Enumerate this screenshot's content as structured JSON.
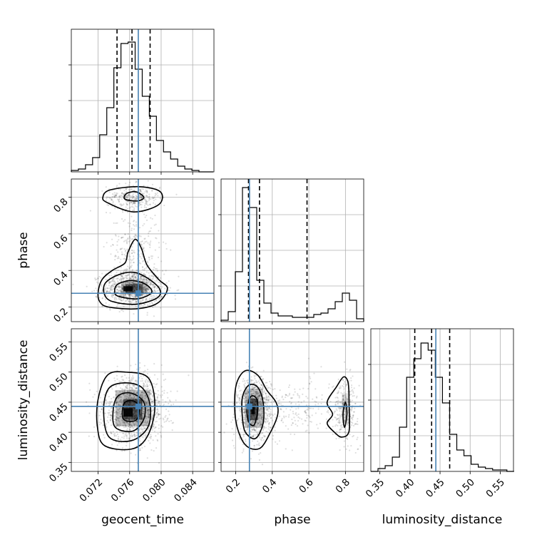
{
  "chart_data": {
    "type": "corner",
    "parameters": [
      "geocent_time",
      "phase",
      "luminosity_distance"
    ],
    "axis_labels": {
      "geocent_time": "geocent_time",
      "phase": "phase",
      "luminosity_distance": "luminosity_distance"
    },
    "ranges": {
      "geocent_time": [
        0.0686,
        0.0867
      ],
      "phase": [
        0.12,
        0.9
      ],
      "luminosity_distance": [
        0.335,
        0.572
      ]
    },
    "ticks": {
      "geocent_time": [
        0.072,
        0.076,
        0.08,
        0.084
      ],
      "phase": [
        0.2,
        0.4,
        0.6,
        0.8
      ],
      "luminosity_distance": [
        0.35,
        0.4,
        0.45,
        0.5,
        0.55
      ]
    },
    "tick_labels": {
      "geocent_time": [
        "0.072",
        "0.076",
        "0.080",
        "0.084"
      ],
      "phase": [
        "0.2",
        "0.4",
        "0.6",
        "0.8"
      ],
      "luminosity_distance": [
        "0.35",
        "0.40",
        "0.45",
        "0.50",
        "0.55"
      ]
    },
    "truths": {
      "geocent_time": 0.0771,
      "phase": 0.275,
      "luminosity_distance": 0.443
    },
    "quantiles": {
      "geocent_time": [
        0.0744,
        0.0763,
        0.0786
      ],
      "phase": [
        0.27,
        0.33,
        0.59
      ],
      "luminosity_distance": [
        0.408,
        0.436,
        0.466
      ]
    },
    "histograms": {
      "geocent_time": {
        "bin_start": 0.0686,
        "bin_width": 0.0009,
        "counts": [
          0.01,
          0.02,
          0.05,
          0.1,
          0.26,
          0.45,
          0.73,
          0.9,
          0.91,
          0.72,
          0.53,
          0.39,
          0.22,
          0.14,
          0.09,
          0.04,
          0.02,
          0.01,
          0.0,
          0.0
        ]
      },
      "phase": {
        "bin_start": 0.12,
        "bin_width": 0.039,
        "counts": [
          0.01,
          0.07,
          0.35,
          0.94,
          0.8,
          0.29,
          0.13,
          0.06,
          0.04,
          0.04,
          0.03,
          0.03,
          0.03,
          0.05,
          0.06,
          0.09,
          0.14,
          0.2,
          0.15,
          0.02
        ]
      },
      "luminosity_distance": {
        "bin_start": 0.335,
        "bin_width": 0.0119,
        "counts": [
          0.0,
          0.02,
          0.04,
          0.1,
          0.31,
          0.66,
          0.79,
          0.9,
          0.85,
          0.66,
          0.48,
          0.26,
          0.15,
          0.11,
          0.05,
          0.03,
          0.02,
          0.01,
          0.01,
          0.0
        ]
      }
    },
    "scatter_clusters": [
      {
        "x": "geocent_time",
        "y": "phase",
        "cx": 0.0765,
        "cy": 0.3,
        "sx": 0.0019,
        "sy": 0.05,
        "n": 1100
      },
      {
        "x": "geocent_time",
        "y": "phase",
        "cx": 0.0765,
        "cy": 0.8,
        "sx": 0.0017,
        "sy": 0.035,
        "n": 350
      },
      {
        "x": "geocent_time",
        "y": "phase",
        "cx": 0.0766,
        "cy": 0.52,
        "sx": 0.0016,
        "sy": 0.1,
        "n": 250
      },
      {
        "x": "geocent_time",
        "y": "luminosity_distance",
        "cx": 0.0766,
        "cy": 0.438,
        "sx": 0.0019,
        "sy": 0.026,
        "n": 1500
      },
      {
        "x": "phase",
        "y": "luminosity_distance",
        "cx": 0.3,
        "cy": 0.438,
        "sx": 0.045,
        "sy": 0.026,
        "n": 1000
      },
      {
        "x": "phase",
        "y": "luminosity_distance",
        "cx": 0.8,
        "cy": 0.44,
        "sx": 0.035,
        "sy": 0.025,
        "n": 300
      },
      {
        "x": "phase",
        "y": "luminosity_distance",
        "cx": 0.52,
        "cy": 0.44,
        "sx": 0.11,
        "sy": 0.025,
        "n": 200
      }
    ],
    "contours": [
      {
        "x": "geocent_time",
        "y": "phase",
        "points": [
          [
            0.0733,
            0.2
          ],
          [
            0.0768,
            0.19
          ],
          [
            0.0795,
            0.22
          ],
          [
            0.0808,
            0.3
          ],
          [
            0.0797,
            0.35
          ],
          [
            0.0782,
            0.43
          ],
          [
            0.0775,
            0.52
          ],
          [
            0.0767,
            0.57
          ],
          [
            0.0758,
            0.5
          ],
          [
            0.0754,
            0.44
          ],
          [
            0.0738,
            0.4
          ],
          [
            0.0725,
            0.35
          ],
          [
            0.072,
            0.28
          ],
          [
            0.0722,
            0.23
          ]
        ]
      },
      {
        "x": "geocent_time",
        "y": "phase",
        "points": [
          [
            0.0738,
            0.23
          ],
          [
            0.0768,
            0.215
          ],
          [
            0.0795,
            0.25
          ],
          [
            0.0798,
            0.3
          ],
          [
            0.0782,
            0.36
          ],
          [
            0.0765,
            0.39
          ],
          [
            0.0745,
            0.375
          ],
          [
            0.0729,
            0.33
          ],
          [
            0.0728,
            0.27
          ]
        ]
      },
      {
        "x": "geocent_time",
        "y": "phase",
        "points": [
          [
            0.0745,
            0.26
          ],
          [
            0.077,
            0.245
          ],
          [
            0.0788,
            0.28
          ],
          [
            0.078,
            0.325
          ],
          [
            0.0762,
            0.345
          ],
          [
            0.0745,
            0.325
          ],
          [
            0.0741,
            0.29
          ]
        ]
      },
      {
        "x": "geocent_time",
        "y": "phase",
        "points": [
          [
            0.0732,
            0.77
          ],
          [
            0.0765,
            0.72
          ],
          [
            0.0797,
            0.76
          ],
          [
            0.0799,
            0.83
          ],
          [
            0.0772,
            0.858
          ],
          [
            0.0735,
            0.84
          ],
          [
            0.0726,
            0.8
          ]
        ]
      },
      {
        "x": "geocent_time",
        "y": "phase",
        "points": [
          [
            0.0754,
            0.79
          ],
          [
            0.077,
            0.78
          ],
          [
            0.0778,
            0.8
          ],
          [
            0.0768,
            0.83
          ],
          [
            0.0756,
            0.82
          ]
        ]
      },
      {
        "x": "geocent_time",
        "y": "luminosity_distance",
        "points": [
          [
            0.0728,
            0.378
          ],
          [
            0.0762,
            0.372
          ],
          [
            0.0782,
            0.392
          ],
          [
            0.0792,
            0.44
          ],
          [
            0.0784,
            0.49
          ],
          [
            0.0755,
            0.5
          ],
          [
            0.0732,
            0.495
          ],
          [
            0.072,
            0.455
          ],
          [
            0.0719,
            0.41
          ]
        ]
      },
      {
        "x": "geocent_time",
        "y": "luminosity_distance",
        "points": [
          [
            0.0734,
            0.392
          ],
          [
            0.0762,
            0.386
          ],
          [
            0.0783,
            0.408
          ],
          [
            0.0786,
            0.445
          ],
          [
            0.0775,
            0.475
          ],
          [
            0.0752,
            0.482
          ],
          [
            0.0733,
            0.472
          ],
          [
            0.0727,
            0.435
          ]
        ]
      },
      {
        "x": "geocent_time",
        "y": "luminosity_distance",
        "points": [
          [
            0.0742,
            0.408
          ],
          [
            0.0764,
            0.402
          ],
          [
            0.0778,
            0.422
          ],
          [
            0.0778,
            0.45
          ],
          [
            0.0762,
            0.465
          ],
          [
            0.0745,
            0.46
          ],
          [
            0.0739,
            0.435
          ]
        ]
      },
      {
        "x": "geocent_time",
        "y": "luminosity_distance",
        "points": [
          [
            0.0752,
            0.422
          ],
          [
            0.0768,
            0.42
          ],
          [
            0.0772,
            0.44
          ],
          [
            0.0765,
            0.452
          ],
          [
            0.0753,
            0.448
          ]
        ]
      },
      {
        "x": "phase",
        "y": "luminosity_distance",
        "points": [
          [
            0.25,
            0.38
          ],
          [
            0.33,
            0.373
          ],
          [
            0.39,
            0.4
          ],
          [
            0.43,
            0.43
          ],
          [
            0.42,
            0.45
          ],
          [
            0.37,
            0.47
          ],
          [
            0.32,
            0.495
          ],
          [
            0.25,
            0.502
          ],
          [
            0.2,
            0.475
          ],
          [
            0.2,
            0.42
          ]
        ]
      },
      {
        "x": "phase",
        "y": "luminosity_distance",
        "points": [
          [
            0.26,
            0.397
          ],
          [
            0.31,
            0.39
          ],
          [
            0.35,
            0.415
          ],
          [
            0.35,
            0.45
          ],
          [
            0.32,
            0.475
          ],
          [
            0.27,
            0.478
          ],
          [
            0.235,
            0.455
          ],
          [
            0.24,
            0.415
          ]
        ]
      },
      {
        "x": "phase",
        "y": "luminosity_distance",
        "points": [
          [
            0.27,
            0.418
          ],
          [
            0.3,
            0.412
          ],
          [
            0.32,
            0.435
          ],
          [
            0.315,
            0.455
          ],
          [
            0.285,
            0.46
          ],
          [
            0.262,
            0.44
          ]
        ]
      },
      {
        "x": "phase",
        "y": "luminosity_distance",
        "points": [
          [
            0.73,
            0.43
          ],
          [
            0.7,
            0.415
          ],
          [
            0.74,
            0.4
          ],
          [
            0.78,
            0.392
          ],
          [
            0.82,
            0.402
          ],
          [
            0.82,
            0.45
          ],
          [
            0.815,
            0.482
          ],
          [
            0.79,
            0.492
          ],
          [
            0.75,
            0.475
          ],
          [
            0.7,
            0.45
          ]
        ]
      },
      {
        "x": "phase",
        "y": "luminosity_distance",
        "points": [
          [
            0.795,
            0.408
          ],
          [
            0.808,
            0.43
          ],
          [
            0.8,
            0.45
          ],
          [
            0.787,
            0.43
          ]
        ]
      }
    ],
    "density_blocks": [
      {
        "x": "geocent_time",
        "y": "phase",
        "cx": 0.0758,
        "cy": 0.3,
        "w": 0.0012,
        "h": 0.028,
        "shade": 0.9
      },
      {
        "x": "geocent_time",
        "y": "phase",
        "cx": 0.0766,
        "cy": 0.3,
        "w": 0.0022,
        "h": 0.05,
        "shade": 0.5
      },
      {
        "x": "geocent_time",
        "y": "phase",
        "cx": 0.0766,
        "cy": 0.305,
        "w": 0.0034,
        "h": 0.07,
        "shade": 0.25
      },
      {
        "x": "geocent_time",
        "y": "luminosity_distance",
        "cx": 0.0758,
        "cy": 0.433,
        "w": 0.0012,
        "h": 0.014,
        "shade": 0.9
      },
      {
        "x": "geocent_time",
        "y": "luminosity_distance",
        "cx": 0.0764,
        "cy": 0.438,
        "w": 0.0024,
        "h": 0.034,
        "shade": 0.55
      },
      {
        "x": "geocent_time",
        "y": "luminosity_distance",
        "cx": 0.0764,
        "cy": 0.44,
        "w": 0.0044,
        "h": 0.06,
        "shade": 0.25
      },
      {
        "x": "phase",
        "y": "luminosity_distance",
        "cx": 0.295,
        "cy": 0.437,
        "w": 0.02,
        "h": 0.014,
        "shade": 0.9
      },
      {
        "x": "phase",
        "y": "luminosity_distance",
        "cx": 0.295,
        "cy": 0.438,
        "w": 0.055,
        "h": 0.036,
        "shade": 0.55
      },
      {
        "x": "phase",
        "y": "luminosity_distance",
        "cx": 0.3,
        "cy": 0.44,
        "w": 0.1,
        "h": 0.065,
        "shade": 0.22
      },
      {
        "x": "phase",
        "y": "luminosity_distance",
        "cx": 0.8,
        "cy": 0.44,
        "w": 0.04,
        "h": 0.05,
        "shade": 0.12
      }
    ]
  }
}
